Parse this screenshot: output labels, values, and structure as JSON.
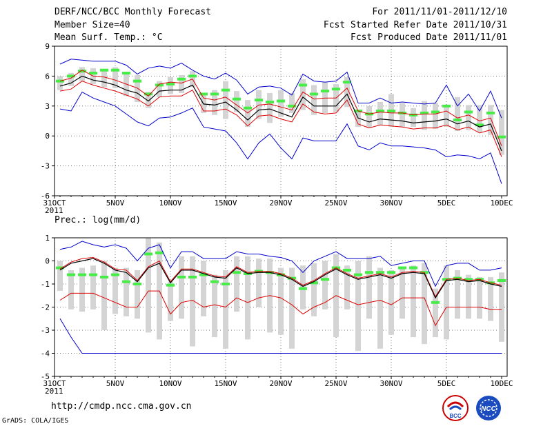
{
  "header": {
    "title": "DERF/NCC/BCC Monthly Forecast",
    "member_size": "Member Size=40",
    "variable": "Mean Surf. Temp.: °C",
    "period": "For 2011/11/01-2011/12/10",
    "started": "Fcst Started Refer Date 2011/10/31",
    "produced": "Fcst Produced Date 2011/11/01"
  },
  "footer": {
    "url": "http://cmdp.ncc.cma.gov.cn",
    "credit": "GrADS: COLA/IGES",
    "logo_left_text": "BCC",
    "logo_right_text": "NCC"
  },
  "colors": {
    "box": "#d4d4d4",
    "median": "#44ee44",
    "mean": "#000000",
    "inner": "#dd0000",
    "outer": "#0000cc",
    "grid": "#777777"
  },
  "chart_data": [
    {
      "type": "box-and-line",
      "title": "Mean Surf. Temp.: °C",
      "ylim": [
        -6,
        9
      ],
      "yticks": [
        9,
        6,
        3,
        0,
        -3,
        -6
      ],
      "xticks": [
        "31OCT",
        "5NOV",
        "10NOV",
        "15NOV",
        "20NOV",
        "25NOV",
        "30NOV",
        "5DEC",
        "10DEC"
      ],
      "xtick_day_index": [
        0,
        5,
        10,
        15,
        20,
        25,
        30,
        35,
        40
      ],
      "year_label": "2011",
      "xmax_day_index": 41,
      "box_low": [
        4.6,
        5.0,
        5.5,
        5.2,
        4.9,
        4.8,
        4.0,
        3.4,
        2.8,
        3.9,
        4.2,
        4.3,
        4.9,
        2.3,
        2.1,
        1.7,
        2.4,
        0.9,
        1.7,
        1.3,
        1.9,
        2.3,
        2.6,
        2.1,
        2.3,
        2.4,
        2.9,
        0.9,
        0.8,
        1.1,
        0.9,
        0.9,
        0.9,
        0.6,
        0.7,
        0.9,
        0.5,
        0.6,
        0.4,
        0.1,
        -1.9
      ],
      "box_high": [
        6.0,
        6.3,
        6.9,
        6.8,
        6.7,
        6.9,
        6.4,
        6.1,
        4.4,
        5.5,
        5.9,
        6.1,
        6.5,
        4.3,
        4.6,
        5.5,
        4.5,
        3.6,
        4.6,
        4.3,
        4.6,
        4.3,
        5.7,
        5.1,
        5.4,
        5.2,
        5.9,
        2.6,
        3.0,
        3.4,
        4.2,
        3.3,
        2.8,
        3.5,
        3.3,
        3.0,
        3.9,
        3.1,
        3.1,
        3.1,
        2.6
      ],
      "median": [
        5.5,
        6.0,
        6.5,
        6.3,
        6.6,
        6.6,
        6.3,
        5.5,
        4.2,
        5.1,
        5.2,
        5.7,
        6.0,
        4.2,
        4.2,
        4.6,
        3.7,
        2.8,
        3.6,
        3.4,
        3.5,
        3.0,
        5.1,
        4.2,
        4.5,
        4.7,
        5.4,
        2.5,
        2.2,
        2.5,
        2.5,
        2.3,
        2.1,
        2.3,
        2.4,
        3.0,
        1.6,
        2.4,
        1.1,
        2.3,
        -0.1
      ],
      "mean": [
        5.0,
        5.3,
        6.0,
        5.6,
        5.4,
        5.1,
        4.6,
        4.3,
        3.5,
        4.5,
        4.6,
        4.6,
        5.1,
        3.2,
        3.1,
        3.4,
        2.6,
        1.6,
        2.6,
        2.7,
        2.3,
        1.9,
        3.9,
        3.0,
        3.0,
        3.0,
        4.2,
        1.8,
        1.4,
        1.7,
        1.6,
        1.5,
        1.3,
        1.4,
        1.5,
        1.7,
        1.2,
        1.5,
        0.9,
        1.2,
        -1.5
      ],
      "inner_high": [
        5.5,
        5.8,
        6.6,
        6.0,
        5.9,
        5.6,
        5.2,
        4.8,
        4.0,
        5.2,
        5.4,
        5.3,
        5.7,
        3.8,
        3.6,
        3.9,
        3.1,
        2.3,
        3.1,
        3.2,
        2.9,
        2.6,
        4.4,
        3.7,
        3.8,
        3.8,
        4.8,
        2.5,
        2.2,
        2.4,
        2.3,
        2.3,
        2.1,
        2.2,
        2.2,
        2.5,
        1.8,
        2.1,
        1.5,
        1.8,
        -1.0
      ],
      "inner_low": [
        4.5,
        4.7,
        5.5,
        5.1,
        4.8,
        4.5,
        4.1,
        3.7,
        3.0,
        3.9,
        4.0,
        4.0,
        4.6,
        2.5,
        2.5,
        2.7,
        2.1,
        1.0,
        2.0,
        2.1,
        1.7,
        1.4,
        3.2,
        2.4,
        2.2,
        2.3,
        3.6,
        1.2,
        0.8,
        1.1,
        1.0,
        0.9,
        0.7,
        0.8,
        0.8,
        1.1,
        0.6,
        0.9,
        0.3,
        0.6,
        -2.1
      ],
      "outer_high": [
        7.2,
        7.7,
        7.6,
        7.5,
        7.5,
        7.5,
        7.1,
        6.2,
        6.8,
        7.0,
        6.8,
        7.3,
        6.6,
        6.0,
        5.7,
        6.3,
        5.6,
        4.2,
        4.9,
        5.0,
        4.8,
        4.1,
        6.2,
        5.5,
        5.4,
        5.5,
        6.4,
        3.3,
        3.3,
        3.8,
        3.3,
        3.4,
        3.3,
        3.2,
        3.3,
        5.1,
        3.0,
        4.2,
        2.5,
        4.5,
        1.8
      ],
      "outer_low": [
        2.7,
        2.5,
        4.4,
        3.8,
        3.4,
        3.0,
        2.2,
        1.4,
        1.0,
        1.8,
        1.9,
        2.3,
        2.8,
        0.9,
        0.7,
        0.5,
        -0.7,
        -2.3,
        -0.7,
        0.2,
        -1.2,
        -2.3,
        -0.2,
        -0.5,
        -0.5,
        -0.5,
        1.2,
        -1.0,
        -1.4,
        -0.7,
        -1.0,
        -1.0,
        -1.1,
        -1.2,
        -1.4,
        -2.1,
        -1.9,
        -2.0,
        -2.3,
        -1.7,
        -4.8
      ]
    },
    {
      "type": "box-and-line",
      "title": "Prec.: log(mm/d)",
      "ylim": [
        -5,
        1
      ],
      "yticks": [
        1,
        0,
        -1,
        -2,
        -3,
        -4,
        -5
      ],
      "xticks": [
        "31OCT",
        "5NOV",
        "10NOV",
        "15NOV",
        "20NOV",
        "25NOV",
        "30NOV",
        "5DEC",
        "10DEC"
      ],
      "xtick_day_index": [
        0,
        5,
        10,
        15,
        20,
        25,
        30,
        35,
        40
      ],
      "year_label": "2011",
      "xmax_day_index": 41,
      "box_low": [
        -1.3,
        -2.1,
        -2.2,
        -2.1,
        -3.0,
        -2.3,
        -2.4,
        -2.5,
        -3.1,
        -3.4,
        -2.6,
        -2.5,
        -3.7,
        -2.4,
        -3.3,
        -3.8,
        -2.2,
        -3.4,
        -2.0,
        -3.1,
        -3.2,
        -3.8,
        -2.1,
        -2.4,
        -2.1,
        -3.3,
        -2.1,
        -3.9,
        -2.5,
        -3.8,
        -3.2,
        -2.5,
        -3.3,
        -3.6,
        -3.3,
        -3.4,
        -2.5,
        -2.5,
        -2.5,
        -2.6,
        -3.5
      ],
      "box_high": [
        0.0,
        -0.4,
        -0.3,
        -0.2,
        0.0,
        -0.3,
        -0.3,
        -0.4,
        1.0,
        0.8,
        -0.9,
        0.2,
        0.2,
        0.0,
        -0.6,
        -0.4,
        0.2,
        0.2,
        0.1,
        0.1,
        -0.3,
        -0.3,
        -0.2,
        -0.1,
        0.0,
        0.3,
        -0.2,
        0.0,
        0.2,
        -0.3,
        -0.4,
        -0.3,
        -0.2,
        -0.1,
        -1.2,
        -0.2,
        -0.4,
        -0.6,
        -0.7,
        -0.7,
        -0.5
      ],
      "median": [
        -0.3,
        -0.6,
        -0.6,
        -0.6,
        -0.7,
        -0.6,
        -0.9,
        -1.0,
        0.3,
        0.35,
        -1.05,
        -0.7,
        -0.7,
        -0.6,
        -0.9,
        -1.0,
        -0.5,
        -0.55,
        -0.45,
        -0.5,
        -0.6,
        -0.75,
        -1.2,
        -0.95,
        -0.8,
        -0.3,
        -0.4,
        -0.6,
        -0.5,
        -0.5,
        -0.5,
        -0.3,
        -0.3,
        -0.5,
        -1.8,
        -0.8,
        -0.75,
        -0.8,
        -0.8,
        -0.95,
        -0.85
      ],
      "mean": [
        -0.4,
        -0.1,
        0.0,
        0.1,
        -0.1,
        -0.4,
        -0.5,
        -0.9,
        -0.3,
        -0.1,
        -0.95,
        -0.4,
        -0.4,
        -0.55,
        -0.7,
        -0.75,
        -0.3,
        -0.55,
        -0.5,
        -0.5,
        -0.6,
        -0.8,
        -1.1,
        -0.9,
        -0.6,
        -0.35,
        -0.6,
        -0.8,
        -0.7,
        -0.6,
        -0.75,
        -0.55,
        -0.5,
        -0.55,
        -1.6,
        -0.85,
        -0.8,
        -0.9,
        -0.85,
        -1.0,
        -1.1
      ],
      "inner_high": [
        -0.35,
        -0.05,
        0.1,
        0.15,
        -0.05,
        -0.35,
        -0.4,
        -0.85,
        -0.25,
        0.0,
        -0.9,
        -0.35,
        -0.35,
        -0.5,
        -0.65,
        -0.7,
        -0.25,
        -0.5,
        -0.45,
        -0.45,
        -0.55,
        -0.75,
        -1.05,
        -0.85,
        -0.55,
        -0.3,
        -0.55,
        -0.75,
        -0.65,
        -0.55,
        -0.7,
        -0.5,
        -0.45,
        -0.5,
        -1.55,
        -0.8,
        -0.75,
        -0.85,
        -0.8,
        -0.95,
        -1.05
      ],
      "inner_low": [
        -1.7,
        -1.4,
        -1.4,
        -1.4,
        -1.6,
        -1.8,
        -2.0,
        -2.0,
        -1.3,
        -1.3,
        -2.3,
        -1.8,
        -1.7,
        -2.0,
        -1.9,
        -2.0,
        -1.6,
        -1.8,
        -1.6,
        -1.5,
        -1.6,
        -1.9,
        -2.3,
        -2.0,
        -1.8,
        -1.5,
        -1.7,
        -1.9,
        -1.8,
        -1.7,
        -1.9,
        -1.6,
        -1.6,
        -1.6,
        -2.8,
        -2.0,
        -2.0,
        -2.0,
        -2.0,
        -2.1,
        -2.1
      ],
      "outer_high": [
        0.5,
        0.6,
        0.85,
        0.7,
        0.6,
        0.7,
        0.55,
        0.0,
        0.55,
        0.7,
        -0.3,
        0.4,
        0.4,
        0.1,
        0.1,
        0.1,
        0.4,
        0.3,
        0.3,
        0.2,
        0.15,
        0.0,
        -0.5,
        0.0,
        0.2,
        0.4,
        0.1,
        0.1,
        0.1,
        0.2,
        -0.2,
        -0.1,
        0.0,
        0.0,
        -1.1,
        -0.2,
        -0.1,
        -0.1,
        -0.4,
        -0.4,
        -0.3
      ],
      "outer_low": [
        -2.5,
        -3.3,
        -4.0,
        -4.0,
        -4.0,
        -4.0,
        -4.0,
        -4.0,
        -4.0,
        -4.0,
        -4.0,
        -4.0,
        -4.0,
        -4.0,
        -4.0,
        -4.0,
        -4.0,
        -4.0,
        -4.0,
        -4.0,
        -4.0,
        -4.0,
        -4.0,
        -4.0,
        -4.0,
        -4.0,
        -4.0,
        -4.0,
        -4.0,
        -4.0,
        -4.0,
        -4.0,
        -4.0,
        -4.0,
        -4.0,
        -4.0,
        -4.0,
        -4.0,
        -4.0,
        -4.0,
        -4.0
      ]
    }
  ]
}
